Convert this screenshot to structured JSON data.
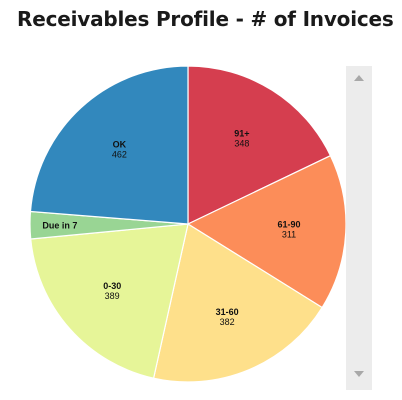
{
  "chart_data": {
    "type": "pie",
    "title": "Receivables Profile - # of Invoices",
    "slices": [
      {
        "label": "91+",
        "value": 348,
        "color": "#d53e4f"
      },
      {
        "label": "61-90",
        "value": 311,
        "color": "#fc8d59"
      },
      {
        "label": "31-60",
        "value": 382,
        "color": "#fee08b"
      },
      {
        "label": "0-30",
        "value": 389,
        "color": "#e6f598"
      },
      {
        "label": "Due in 7",
        "value": 54,
        "color": "#99d594"
      },
      {
        "label": "OK",
        "value": 462,
        "color": "#3288bd"
      }
    ],
    "start_angle": "12 o'clock",
    "direction": "clockwise",
    "legend": "none"
  },
  "scrollbar": {
    "up_icon": "scroll-up-arrow-icon",
    "down_icon": "scroll-down-arrow-icon"
  }
}
